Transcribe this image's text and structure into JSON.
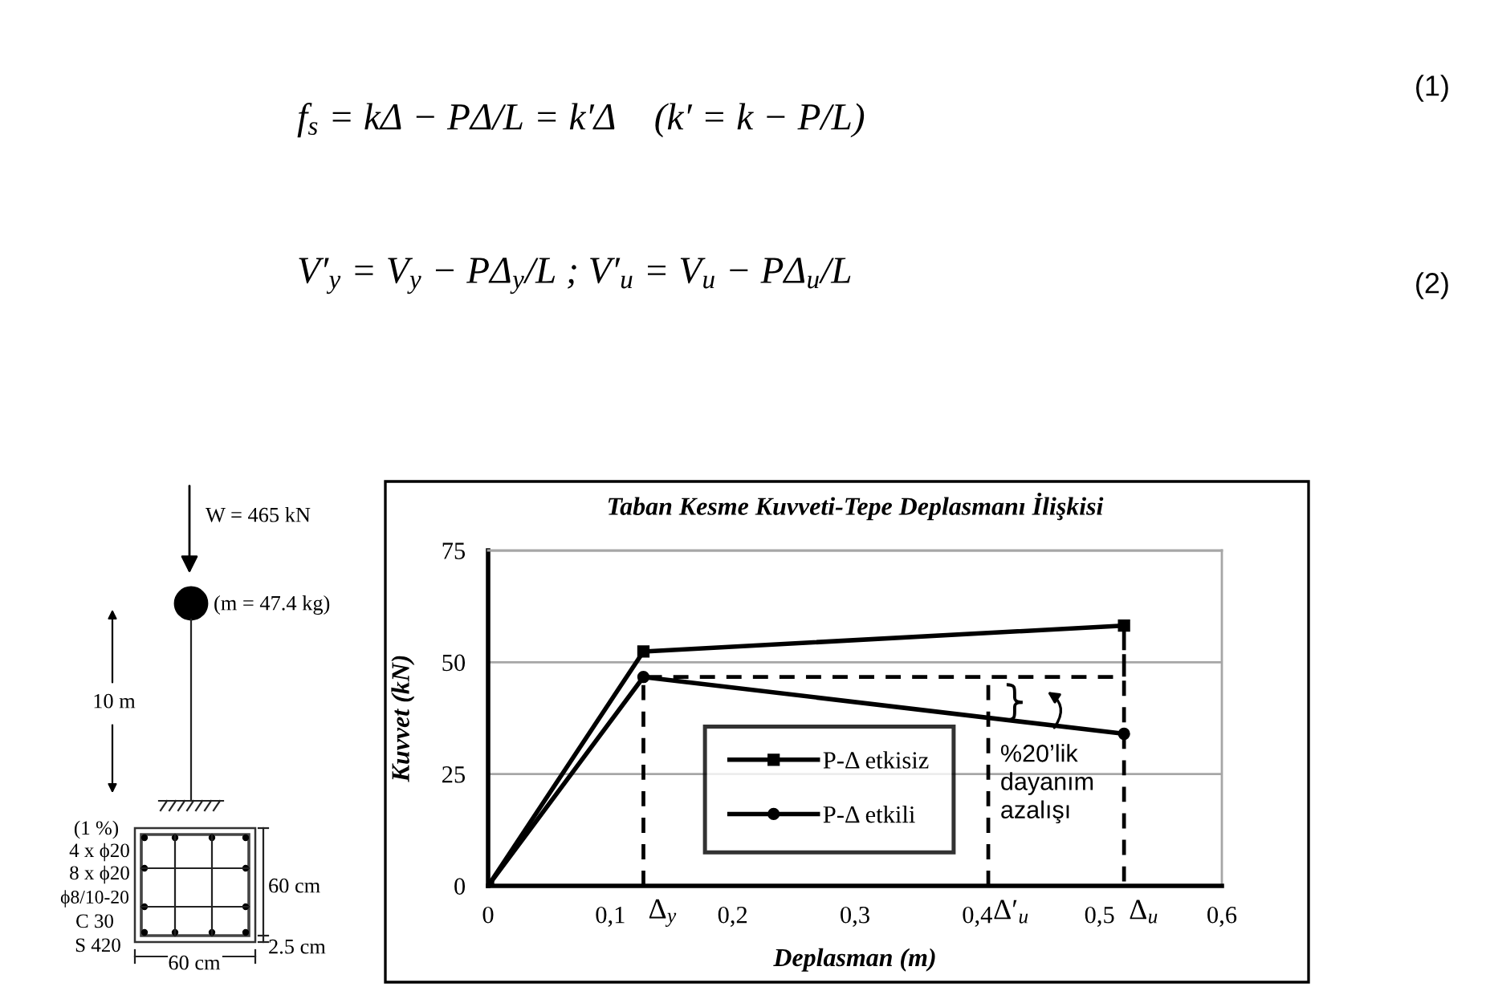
{
  "chart_data": {
    "type": "line",
    "title": "Taban Kesme Kuvveti-Tepe Deplasmanı İlişkisi",
    "xlabel": "Deplasman (m)",
    "ylabel": "Kuvvet (kN)",
    "series": [
      {
        "name": "P-Δ etkisiz",
        "color": "#000000",
        "x": [
          0,
          0.127,
          0.52
        ],
        "values": [
          0,
          52.4,
          58.2
        ],
        "marker": "square",
        "line_style": "solid"
      },
      {
        "name": "P-Δ etkili",
        "color": "#000000",
        "x": [
          0,
          0.127,
          0.52
        ],
        "values": [
          0,
          46.7,
          34.0
        ],
        "marker": "circle",
        "line_style": "solid"
      },
      {
        "color": "#000000",
        "x": [
          0.127,
          0.127,
          0.52,
          0.52,
          0.52
        ],
        "values": [
          0,
          46.7,
          46.7,
          58.2,
          0
        ],
        "marker": "none",
        "line_style": "dashed"
      },
      {
        "color": "#000000",
        "x": [
          0.409,
          0.409
        ],
        "values": [
          0,
          45
        ],
        "marker": "none",
        "line_style": "dashed"
      }
    ],
    "xlim": [
      0,
      0.6
    ],
    "xticks": [
      0,
      {
        "value": 0.1,
        "label": "0,1"
      },
      {
        "value": 0.2,
        "label": "0,2"
      },
      {
        "value": 0.3,
        "label": "0,3"
      },
      {
        "value": 0.4,
        "label": "0,4"
      },
      {
        "value": 0.5,
        "label": "0,5"
      },
      {
        "value": 0.6,
        "label": "0,6"
      }
    ],
    "ylim": [
      0,
      75
    ],
    "yticks": [
      0,
      25,
      50,
      75
    ],
    "grid": "y",
    "legend": "bottom",
    "annotations": [
      {
        "text": "Δ$_{y}$",
        "x": 0.127,
        "y": 0
      },
      {
        "text": "Δ′$_{u}$",
        "x": 0.409,
        "y": 0
      },
      {
        "text": "Δ$_{u}$",
        "x": 0.52,
        "y": 0
      },
      {
        "text": "%20’lik\ndayanım\nazalışı",
        "x": 0.424,
        "y": 37.1
      },
      "f$_{s}$ = kΔ − PΔ/L = k′Δ    (k′ = k − P/L)",
      "(1)",
      "V′$_{y}$ = V$_{y}$ − PΔ$_{y}$/L ; V′$_{u}$ = V$_{u}$ − PΔ$_{u}$/L",
      "(2)",
      "W = 465 kN",
      "(m = 47.4 kg)",
      "10 m",
      "(1 %)",
      "4 x ϕ20",
      "8 x ϕ20",
      "ϕ8/10-20",
      "C 30",
      "S 420",
      "60 cm",
      "2.5 cm",
      "60 cm"
    ]
  }
}
